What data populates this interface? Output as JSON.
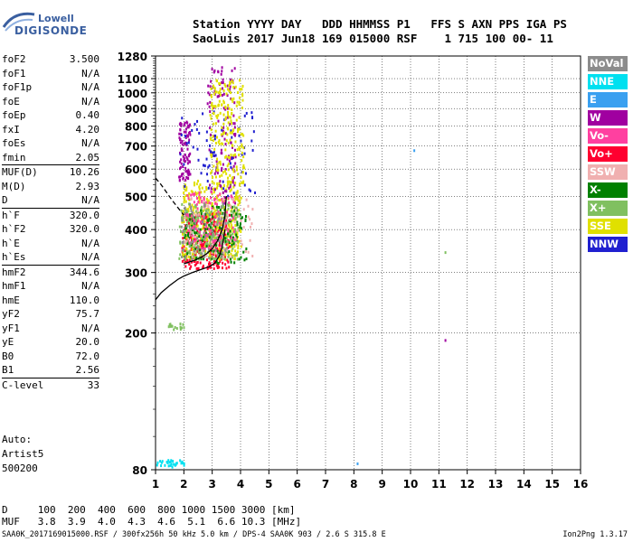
{
  "logo": {
    "line1": "Lowell",
    "line2": "DIGISONDE"
  },
  "header": {
    "line1": "Station YYYY DAY   DDD HHMMSS P1   FFS S AXN PPS IGA PS",
    "line2": "SaoLuis 2017 Jun18 169 015000 RSF    1 715 100 00- 11"
  },
  "params": [
    {
      "k": "foF2",
      "v": "3.500",
      "sep": false
    },
    {
      "k": "foF1",
      "v": "N/A",
      "sep": false
    },
    {
      "k": "foF1p",
      "v": "N/A",
      "sep": false
    },
    {
      "k": "foE",
      "v": "N/A",
      "sep": false
    },
    {
      "k": "foEp",
      "v": "0.40",
      "sep": false
    },
    {
      "k": "fxI",
      "v": "4.20",
      "sep": false
    },
    {
      "k": "foEs",
      "v": "N/A",
      "sep": false
    },
    {
      "k": "fmin",
      "v": "2.05",
      "sep": false
    },
    {
      "k": "MUF(D)",
      "v": "10.26",
      "sep": true
    },
    {
      "k": "M(D)",
      "v": "2.93",
      "sep": false
    },
    {
      "k": "D",
      "v": "N/A",
      "sep": false
    },
    {
      "k": "h`F",
      "v": "320.0",
      "sep": true
    },
    {
      "k": "h`F2",
      "v": "320.0",
      "sep": false
    },
    {
      "k": "h`E",
      "v": "N/A",
      "sep": false
    },
    {
      "k": "h`Es",
      "v": "N/A",
      "sep": false
    },
    {
      "k": "hmF2",
      "v": "344.6",
      "sep": true
    },
    {
      "k": "hmF1",
      "v": "N/A",
      "sep": false
    },
    {
      "k": "hmE",
      "v": "110.0",
      "sep": false
    },
    {
      "k": "yF2",
      "v": "75.7",
      "sep": false
    },
    {
      "k": "yF1",
      "v": "N/A",
      "sep": false
    },
    {
      "k": "yE",
      "v": "20.0",
      "sep": false
    },
    {
      "k": "B0",
      "v": "72.0",
      "sep": false
    },
    {
      "k": "B1",
      "v": "2.56",
      "sep": false
    },
    {
      "k": "C-level",
      "v": "33",
      "sep": true
    }
  ],
  "auto": {
    "line1": "Auto:",
    "line2": "Artist5",
    "line3": "500200"
  },
  "legend": [
    {
      "label": "NoVal",
      "color": "#8c8c8c"
    },
    {
      "label": "NNE",
      "color": "#00e0f0"
    },
    {
      "label": "E",
      "color": "#3aa0f0"
    },
    {
      "label": "W",
      "color": "#a000a0"
    },
    {
      "label": "Vo-",
      "color": "#ff40a0"
    },
    {
      "label": "Vo+",
      "color": "#ff0030"
    },
    {
      "label": "SSW",
      "color": "#f0b0b0"
    },
    {
      "label": "X-",
      "color": "#008000"
    },
    {
      "label": "X+",
      "color": "#80c060"
    },
    {
      "label": "SSE",
      "color": "#e0e000"
    },
    {
      "label": "NNW",
      "color": "#2020d0"
    }
  ],
  "footer": {
    "line1": "D     100  200  400  600  800 1000 1500 3000 [km]",
    "line2": "MUF   3.8  3.9  4.0  4.3  4.6  5.1  6.6 10.3 [MHz]",
    "line3": "SAA0K_2017169015000.RSF / 300fx256h 50 kHz 5.0 km / DPS-4 SAA0K 903 / 2.6 S 315.8 E",
    "version": "Ion2Png 1.3.17"
  },
  "chart_data": {
    "type": "scatter",
    "xlim": [
      1,
      16
    ],
    "xticks": [
      1,
      2,
      3,
      4,
      5,
      6,
      7,
      8,
      9,
      10,
      11,
      12,
      13,
      14,
      15,
      16
    ],
    "ylim": [
      80,
      1280
    ],
    "yticks": [
      80,
      200,
      300,
      400,
      500,
      600,
      700,
      800,
      900,
      1000,
      1100,
      1280
    ],
    "y_scale": "log",
    "grid": true,
    "legend_position": "right",
    "trace_curve": {
      "name": "",
      "x": [
        1.0,
        1.2,
        1.5,
        1.8,
        2.0,
        2.3,
        2.6,
        2.9,
        3.1,
        3.25,
        3.35,
        3.45
      ],
      "y": [
        250,
        262,
        275,
        287,
        293,
        300,
        306,
        312,
        320,
        335,
        355,
        400
      ]
    },
    "profile_curve": {
      "name": "",
      "x": [
        2.0,
        2.2,
        2.4,
        2.6,
        2.8,
        3.0,
        3.2,
        3.35,
        3.45,
        3.5
      ],
      "y": [
        318,
        322,
        326,
        332,
        340,
        352,
        372,
        400,
        440,
        500
      ]
    },
    "dashed_curve": {
      "name": "",
      "x": [
        1.0,
        1.2,
        1.4,
        1.6,
        1.8,
        2.0
      ],
      "y": [
        565,
        540,
        512,
        485,
        462,
        440
      ]
    },
    "echo_clusters": [
      {
        "color": "#ff0030",
        "x_range": [
          1.9,
          3.6
        ],
        "y_range": [
          310,
          450
        ],
        "n": 320
      },
      {
        "color": "#e0e000",
        "x_range": [
          1.9,
          4.0
        ],
        "y_range": [
          330,
          560
        ],
        "n": 380
      },
      {
        "color": "#80c060",
        "x_range": [
          1.8,
          3.9
        ],
        "y_range": [
          330,
          480
        ],
        "n": 220
      },
      {
        "color": "#008000",
        "x_range": [
          2.0,
          4.2
        ],
        "y_range": [
          320,
          470
        ],
        "n": 140
      },
      {
        "color": "#a000a0",
        "x_range": [
          1.8,
          2.2
        ],
        "y_range": [
          560,
          830
        ],
        "n": 90
      },
      {
        "color": "#a000a0",
        "x_range": [
          2.8,
          3.8
        ],
        "y_range": [
          480,
          1200
        ],
        "n": 120
      },
      {
        "color": "#2020d0",
        "x_range": [
          1.8,
          4.5
        ],
        "y_range": [
          500,
          900
        ],
        "n": 70
      },
      {
        "color": "#e0e000",
        "x_range": [
          2.9,
          4.1
        ],
        "y_range": [
          550,
          1100
        ],
        "n": 200
      },
      {
        "color": "#ff40a0",
        "x_range": [
          2.0,
          3.8
        ],
        "y_range": [
          350,
          520
        ],
        "n": 110
      },
      {
        "color": "#f0b0b0",
        "x_range": [
          2.0,
          4.4
        ],
        "y_range": [
          330,
          500
        ],
        "n": 80
      },
      {
        "color": "#8c8c8c",
        "x_range": [
          1.8,
          3.5
        ],
        "y_range": [
          330,
          480
        ],
        "n": 70
      },
      {
        "color": "#00e0f0",
        "x_range": [
          1.0,
          2.0
        ],
        "y_range": [
          82,
          86
        ],
        "n": 30
      },
      {
        "color": "#80c060",
        "x_range": [
          1.4,
          2.0
        ],
        "y_range": [
          205,
          215
        ],
        "n": 15
      }
    ],
    "isolated_points": [
      {
        "x": 10.1,
        "y": 685,
        "color": "#3aa0f0"
      },
      {
        "x": 11.2,
        "y": 346,
        "color": "#80c060"
      },
      {
        "x": 11.2,
        "y": 192,
        "color": "#a000a0"
      },
      {
        "x": 8.1,
        "y": 84,
        "color": "#3aa0f0"
      }
    ]
  }
}
